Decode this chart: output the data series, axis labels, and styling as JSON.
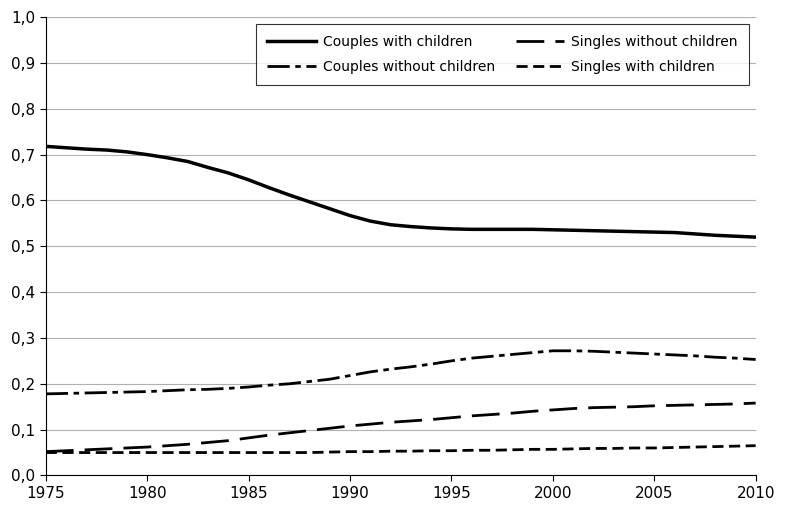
{
  "xlim": [
    1975,
    2010
  ],
  "ylim": [
    0.0,
    1.0
  ],
  "xticks": [
    1975,
    1980,
    1985,
    1990,
    1995,
    2000,
    2005,
    2010
  ],
  "ytick_labels": [
    "0,0",
    "0,1",
    "0,2",
    "0,3",
    "0,4",
    "0,5",
    "0,6",
    "0,7",
    "0,8",
    "0,9",
    "1,0"
  ],
  "series": [
    {
      "label": "Couples with children",
      "dashes": null,
      "linestyle": "solid",
      "linewidth": 2.5,
      "color": "#000000",
      "x": [
        1975,
        1976,
        1977,
        1978,
        1979,
        1980,
        1981,
        1982,
        1983,
        1984,
        1985,
        1986,
        1987,
        1988,
        1989,
        1990,
        1991,
        1992,
        1993,
        1994,
        1995,
        1996,
        1997,
        1998,
        1999,
        2000,
        2001,
        2002,
        2003,
        2004,
        2005,
        2006,
        2007,
        2008,
        2009,
        2010
      ],
      "y": [
        0.718,
        0.715,
        0.712,
        0.71,
        0.706,
        0.7,
        0.693,
        0.685,
        0.672,
        0.66,
        0.645,
        0.628,
        0.612,
        0.597,
        0.582,
        0.567,
        0.555,
        0.547,
        0.543,
        0.54,
        0.538,
        0.537,
        0.537,
        0.537,
        0.537,
        0.536,
        0.535,
        0.534,
        0.533,
        0.532,
        0.531,
        0.53,
        0.527,
        0.524,
        0.522,
        0.52
      ]
    },
    {
      "label": "Couples without children",
      "dashes": [
        8,
        2,
        2,
        2
      ],
      "linestyle": "dashdot",
      "linewidth": 2.0,
      "color": "#000000",
      "x": [
        1975,
        1976,
        1977,
        1978,
        1979,
        1980,
        1981,
        1982,
        1983,
        1984,
        1985,
        1986,
        1987,
        1988,
        1989,
        1990,
        1991,
        1992,
        1993,
        1994,
        1995,
        1996,
        1997,
        1998,
        1999,
        2000,
        2001,
        2002,
        2003,
        2004,
        2005,
        2006,
        2007,
        2008,
        2009,
        2010
      ],
      "y": [
        0.178,
        0.179,
        0.18,
        0.181,
        0.182,
        0.183,
        0.185,
        0.187,
        0.188,
        0.19,
        0.193,
        0.197,
        0.2,
        0.205,
        0.21,
        0.218,
        0.226,
        0.232,
        0.237,
        0.243,
        0.25,
        0.256,
        0.26,
        0.264,
        0.268,
        0.272,
        0.272,
        0.271,
        0.269,
        0.267,
        0.265,
        0.263,
        0.261,
        0.258,
        0.256,
        0.253
      ]
    },
    {
      "label": "Singles without children",
      "dashes": [
        10,
        4
      ],
      "linestyle": "dashed",
      "linewidth": 2.0,
      "color": "#000000",
      "x": [
        1975,
        1976,
        1977,
        1978,
        1979,
        1980,
        1981,
        1982,
        1983,
        1984,
        1985,
        1986,
        1987,
        1988,
        1989,
        1990,
        1991,
        1992,
        1993,
        1994,
        1995,
        1996,
        1997,
        1998,
        1999,
        2000,
        2001,
        2002,
        2003,
        2004,
        2005,
        2006,
        2007,
        2008,
        2009,
        2010
      ],
      "y": [
        0.052,
        0.054,
        0.056,
        0.058,
        0.06,
        0.062,
        0.065,
        0.068,
        0.072,
        0.076,
        0.082,
        0.088,
        0.093,
        0.098,
        0.103,
        0.108,
        0.112,
        0.116,
        0.119,
        0.122,
        0.126,
        0.13,
        0.133,
        0.136,
        0.14,
        0.143,
        0.146,
        0.148,
        0.149,
        0.15,
        0.152,
        0.153,
        0.154,
        0.155,
        0.156,
        0.158
      ]
    },
    {
      "label": "Singles with children",
      "dashes": [
        4,
        2
      ],
      "linestyle": "dashed",
      "linewidth": 2.0,
      "color": "#000000",
      "x": [
        1975,
        1976,
        1977,
        1978,
        1979,
        1980,
        1981,
        1982,
        1983,
        1984,
        1985,
        1986,
        1987,
        1988,
        1989,
        1990,
        1991,
        1992,
        1993,
        1994,
        1995,
        1996,
        1997,
        1998,
        1999,
        2000,
        2001,
        2002,
        2003,
        2004,
        2005,
        2006,
        2007,
        2008,
        2009,
        2010
      ],
      "y": [
        0.05,
        0.05,
        0.05,
        0.05,
        0.05,
        0.05,
        0.05,
        0.05,
        0.05,
        0.05,
        0.05,
        0.05,
        0.05,
        0.05,
        0.051,
        0.052,
        0.052,
        0.053,
        0.053,
        0.054,
        0.054,
        0.055,
        0.055,
        0.056,
        0.057,
        0.057,
        0.058,
        0.059,
        0.059,
        0.06,
        0.06,
        0.061,
        0.062,
        0.063,
        0.064,
        0.065
      ]
    }
  ],
  "background_color": "#ffffff",
  "grid_color": "#b0b0b0",
  "grid_linewidth": 0.8,
  "fontsize": 11,
  "legend_fontsize": 10
}
